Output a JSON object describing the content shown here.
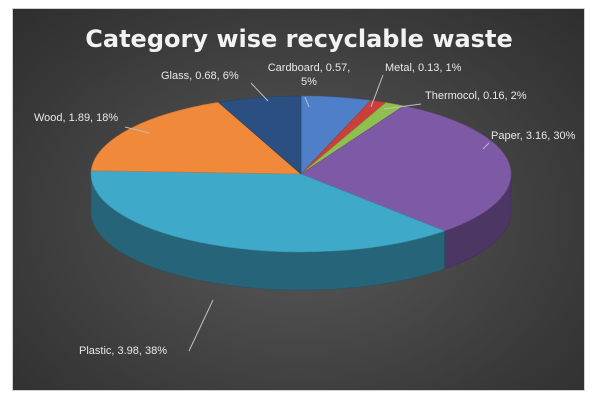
{
  "chart_data": {
    "type": "pie",
    "title": "Category wise recyclable waste",
    "slices": [
      {
        "name": "Cardboard",
        "value": 0.57,
        "percent": "5%",
        "color": "#4f7fc9",
        "label_lines": [
          "Cardboard, 0.57,",
          "5%"
        ]
      },
      {
        "name": "Metal",
        "value": 0.13,
        "percent": "1%",
        "color": "#c9403a",
        "label_lines": [
          "Metal, 0.13, 1%"
        ]
      },
      {
        "name": "Thermocol",
        "value": 0.16,
        "percent": "2%",
        "color": "#8fbf4f",
        "label_lines": [
          "Thermocol, 0.16, 2%"
        ]
      },
      {
        "name": "Paper",
        "value": 3.16,
        "percent": "30%",
        "color": "#7e5aa6",
        "label_lines": [
          "Paper, 3.16, 30%"
        ]
      },
      {
        "name": "Plastic",
        "value": 3.98,
        "percent": "38%",
        "color": "#3fa9c9",
        "label_lines": [
          "Plastic, 3.98, 38%"
        ]
      },
      {
        "name": "Wood",
        "value": 1.89,
        "percent": "18%",
        "color": "#f0893a",
        "label_lines": [
          "Wood, 1.89, 18%"
        ]
      },
      {
        "name": "Glass",
        "value": 0.68,
        "percent": "6%",
        "color": "#2b4f80",
        "label_lines": [
          "Glass, 0.68, 6%"
        ]
      }
    ]
  }
}
